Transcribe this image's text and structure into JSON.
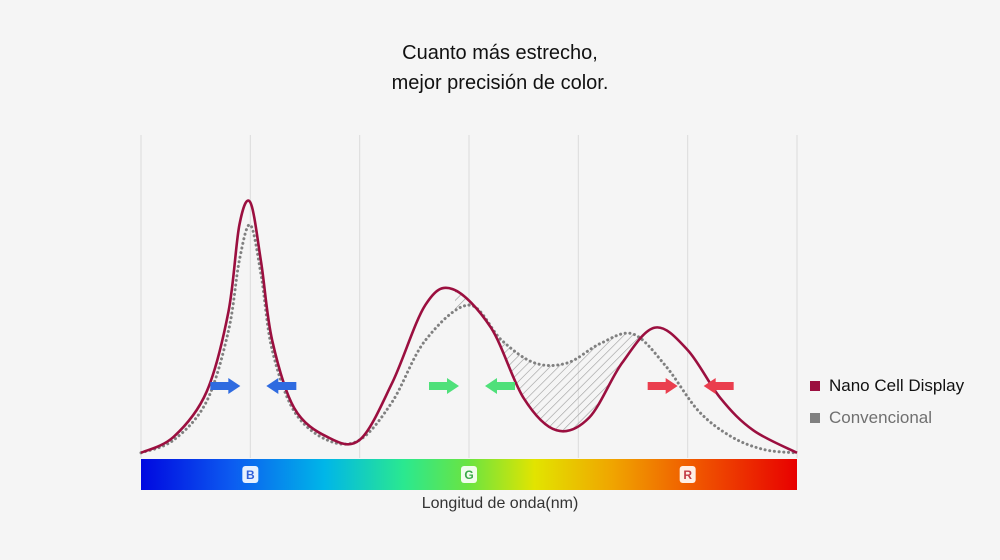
{
  "title": {
    "line1": "Cuanto más estrecho,",
    "line2": "mejor precisión de color."
  },
  "legend": [
    {
      "name": "Nano Cell Display",
      "color": "#9b0f3f"
    },
    {
      "name": "Convencional",
      "color": "#808080"
    }
  ],
  "chart_data": {
    "type": "line",
    "title": "Cuanto más estrecho, mejor precisión de color.",
    "xlabel": "Longitud de onda(nm)",
    "ylabel": "",
    "xlim": [
      0,
      6
    ],
    "ylim": [
      0,
      1
    ],
    "grid": true,
    "grid_x": [
      0,
      1,
      2,
      3,
      4,
      5,
      6
    ],
    "band_labels": [
      {
        "label": "B",
        "x": 1,
        "color": "#2f5fd9",
        "arrow_color": "#2f6be0"
      },
      {
        "label": "G",
        "x": 3,
        "color": "#3aa84a",
        "arrow_color": "#4fe07a"
      },
      {
        "label": "R",
        "x": 5,
        "color": "#c23a46",
        "arrow_color": "#ea3e4e"
      }
    ],
    "series": [
      {
        "name": "Nano Cell Display",
        "color": "#9b0f3f",
        "style": "solid",
        "x": [
          0,
          0.3,
          0.6,
          0.8,
          0.9,
          1.0,
          1.1,
          1.2,
          1.4,
          1.7,
          2.0,
          2.3,
          2.6,
          2.85,
          3.2,
          3.5,
          3.8,
          4.1,
          4.4,
          4.7,
          5.0,
          5.3,
          5.6,
          6.0
        ],
        "values": [
          0.01,
          0.06,
          0.2,
          0.45,
          0.72,
          0.79,
          0.6,
          0.36,
          0.15,
          0.06,
          0.05,
          0.23,
          0.47,
          0.52,
          0.4,
          0.18,
          0.08,
          0.12,
          0.29,
          0.4,
          0.33,
          0.18,
          0.08,
          0.01
        ]
      },
      {
        "name": "Convencional",
        "color": "#808080",
        "style": "dotted",
        "x": [
          0,
          0.3,
          0.6,
          0.8,
          0.9,
          1.0,
          1.1,
          1.2,
          1.4,
          1.7,
          2.0,
          2.3,
          2.6,
          3.0,
          3.3,
          3.6,
          3.9,
          4.2,
          4.5,
          4.8,
          5.1,
          5.4,
          5.7,
          6.0
        ],
        "values": [
          0.01,
          0.05,
          0.17,
          0.39,
          0.61,
          0.72,
          0.56,
          0.33,
          0.14,
          0.05,
          0.05,
          0.17,
          0.36,
          0.47,
          0.36,
          0.29,
          0.29,
          0.35,
          0.38,
          0.28,
          0.14,
          0.06,
          0.02,
          0.01
        ]
      }
    ]
  }
}
